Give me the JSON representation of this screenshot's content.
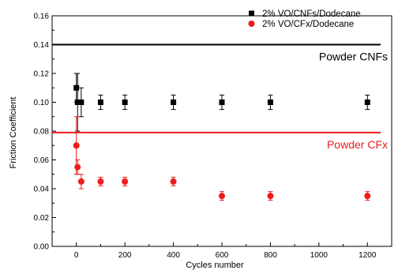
{
  "chart_data": {
    "type": "scatter",
    "title": "",
    "xlabel": "Cycles number",
    "ylabel": "Friction Coefficient",
    "xlim": [
      -100,
      1300
    ],
    "ylim": [
      0,
      0.16
    ],
    "xticks": [
      0,
      200,
      400,
      600,
      800,
      1000,
      1200
    ],
    "yticks": [
      0.0,
      0.02,
      0.04,
      0.06,
      0.08,
      0.1,
      0.12,
      0.14,
      0.16
    ],
    "grid": false,
    "legend_position": "top-right",
    "series": [
      {
        "name": "2% VO/CNFs/Dodecane",
        "color": "#000000",
        "marker": "square",
        "x": [
          0,
          5,
          20,
          100,
          200,
          400,
          600,
          800,
          1200
        ],
        "y": [
          0.11,
          0.1,
          0.1,
          0.1,
          0.1,
          0.1,
          0.1,
          0.1,
          0.1
        ],
        "error": [
          0.01,
          0.02,
          0.01,
          0.005,
          0.005,
          0.005,
          0.005,
          0.005,
          0.005
        ]
      },
      {
        "name": "2% VO/CFx/Dodecane",
        "color": "#ee1c1c",
        "marker": "circle",
        "x": [
          0,
          5,
          20,
          100,
          200,
          400,
          600,
          800,
          1200
        ],
        "y": [
          0.07,
          0.055,
          0.045,
          0.045,
          0.045,
          0.045,
          0.035,
          0.035,
          0.035
        ],
        "error": [
          0.02,
          0.005,
          0.005,
          0.003,
          0.003,
          0.003,
          0.003,
          0.003,
          0.003
        ]
      }
    ],
    "reference_lines": [
      {
        "label": "Powder CNFs",
        "y": 0.14,
        "color": "#000000"
      },
      {
        "label": "Powder CFx",
        "y": 0.079,
        "color": "#ee1c1c"
      }
    ]
  }
}
